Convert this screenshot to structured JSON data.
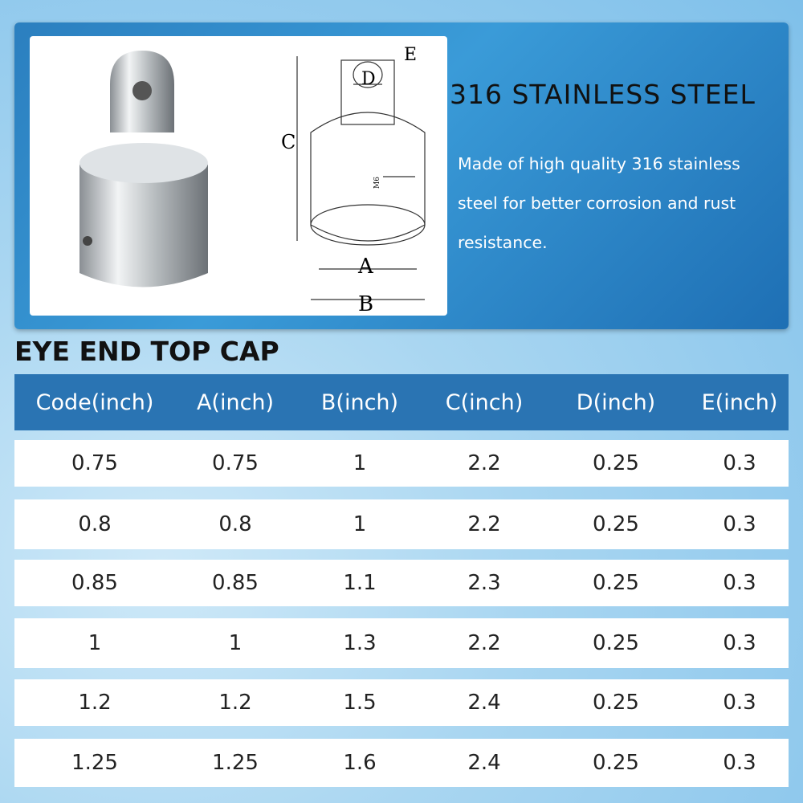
{
  "banner": {
    "title": "316 STAINLESS STEEL",
    "description": "Made of high quality 316 stainless steel for better corrosion and rust resistance.",
    "drawing_labels": {
      "a": "A",
      "b": "B",
      "c": "C",
      "d": "D",
      "e": "E",
      "thread": "M6"
    }
  },
  "table": {
    "title": "EYE END TOP CAP",
    "header": [
      "Code(inch)",
      "A(inch)",
      "B(inch)",
      "C(inch)",
      "D(inch)",
      "E(inch)"
    ],
    "rows": [
      [
        "0.75",
        "0.75",
        "1",
        "2.2",
        "0.25",
        "0.3"
      ],
      [
        "0.8",
        "0.8",
        "1",
        "2.2",
        "0.25",
        "0.3"
      ],
      [
        "0.85",
        "0.85",
        "1.1",
        "2.3",
        "0.25",
        "0.3"
      ],
      [
        "1",
        "1",
        "1.3",
        "2.2",
        "0.25",
        "0.3"
      ],
      [
        "1.2",
        "1.2",
        "1.5",
        "2.4",
        "0.25",
        "0.3"
      ],
      [
        "1.25",
        "1.25",
        "1.6",
        "2.4",
        "0.25",
        "0.3"
      ]
    ]
  }
}
